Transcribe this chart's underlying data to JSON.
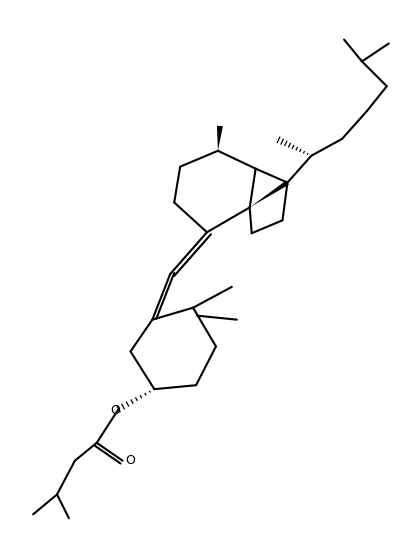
{
  "background_color": "#ffffff",
  "line_color": "#000000",
  "line_width": 1.5,
  "figsize": [
    4.11,
    5.35
  ],
  "dpi": 100,
  "xlim": [
    0,
    411
  ],
  "ylim": [
    0,
    535
  ]
}
